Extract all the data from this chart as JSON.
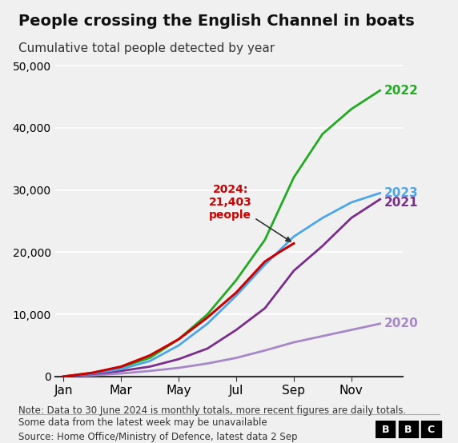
{
  "title": "People crossing the English Channel in boats",
  "subtitle": "Cumulative total people detected by year",
  "note": "Note: Data to 30 June 2024 is monthly totals, more recent figures are daily totals.\nSome data from the latest week may be unavailable",
  "source": "Source: Home Office/Ministry of Defence, latest data 2 Sep",
  "background_color": "#f0f0f0",
  "ylim": [
    0,
    52000
  ],
  "yticks": [
    0,
    10000,
    20000,
    30000,
    40000,
    50000
  ],
  "xtick_labels": [
    "Jan",
    "Mar",
    "May",
    "Jul",
    "Sep",
    "Nov"
  ],
  "xtick_positions": [
    0,
    2,
    4,
    6,
    8,
    10
  ],
  "annotation_text": "2024:\n21,403\npeople",
  "annotation_color": "#cc0000",
  "series": {
    "2020": {
      "color": "#a688c8",
      "label_color": "#a688c8",
      "x": [
        0,
        1,
        2,
        3,
        4,
        5,
        6,
        7,
        8,
        9,
        10,
        11
      ],
      "y": [
        0,
        200,
        500,
        900,
        1400,
        2100,
        3000,
        4200,
        5500,
        6500,
        7500,
        8500
      ]
    },
    "2021": {
      "color": "#7b2d8b",
      "label_color": "#7b2d8b",
      "x": [
        0,
        1,
        2,
        3,
        4,
        5,
        6,
        7,
        8,
        9,
        10,
        11
      ],
      "y": [
        0,
        400,
        900,
        1600,
        2800,
        4500,
        7500,
        11000,
        17000,
        21000,
        25500,
        28500
      ]
    },
    "2022": {
      "color": "#22aa22",
      "label_color": "#22aa22",
      "x": [
        0,
        1,
        2,
        3,
        4,
        5,
        6,
        7,
        8,
        9,
        10,
        11
      ],
      "y": [
        0,
        600,
        1500,
        3000,
        6000,
        10000,
        15500,
        22000,
        32000,
        39000,
        43000,
        46000
      ]
    },
    "2023": {
      "color": "#4da6e8",
      "label_color": "#4da6e8",
      "x": [
        0,
        1,
        2,
        3,
        4,
        5,
        6,
        7,
        8,
        9,
        10,
        11
      ],
      "y": [
        0,
        500,
        1200,
        2500,
        5000,
        8500,
        13000,
        18000,
        22500,
        25500,
        28000,
        29500
      ]
    },
    "2024": {
      "color": "#cc0000",
      "label_color": "#cc0000",
      "x": [
        0,
        1,
        2,
        3,
        4,
        5,
        6,
        7,
        7.5,
        8.0
      ],
      "y": [
        0,
        600,
        1600,
        3400,
        6000,
        9500,
        13500,
        18500,
        20000,
        21403
      ]
    }
  }
}
